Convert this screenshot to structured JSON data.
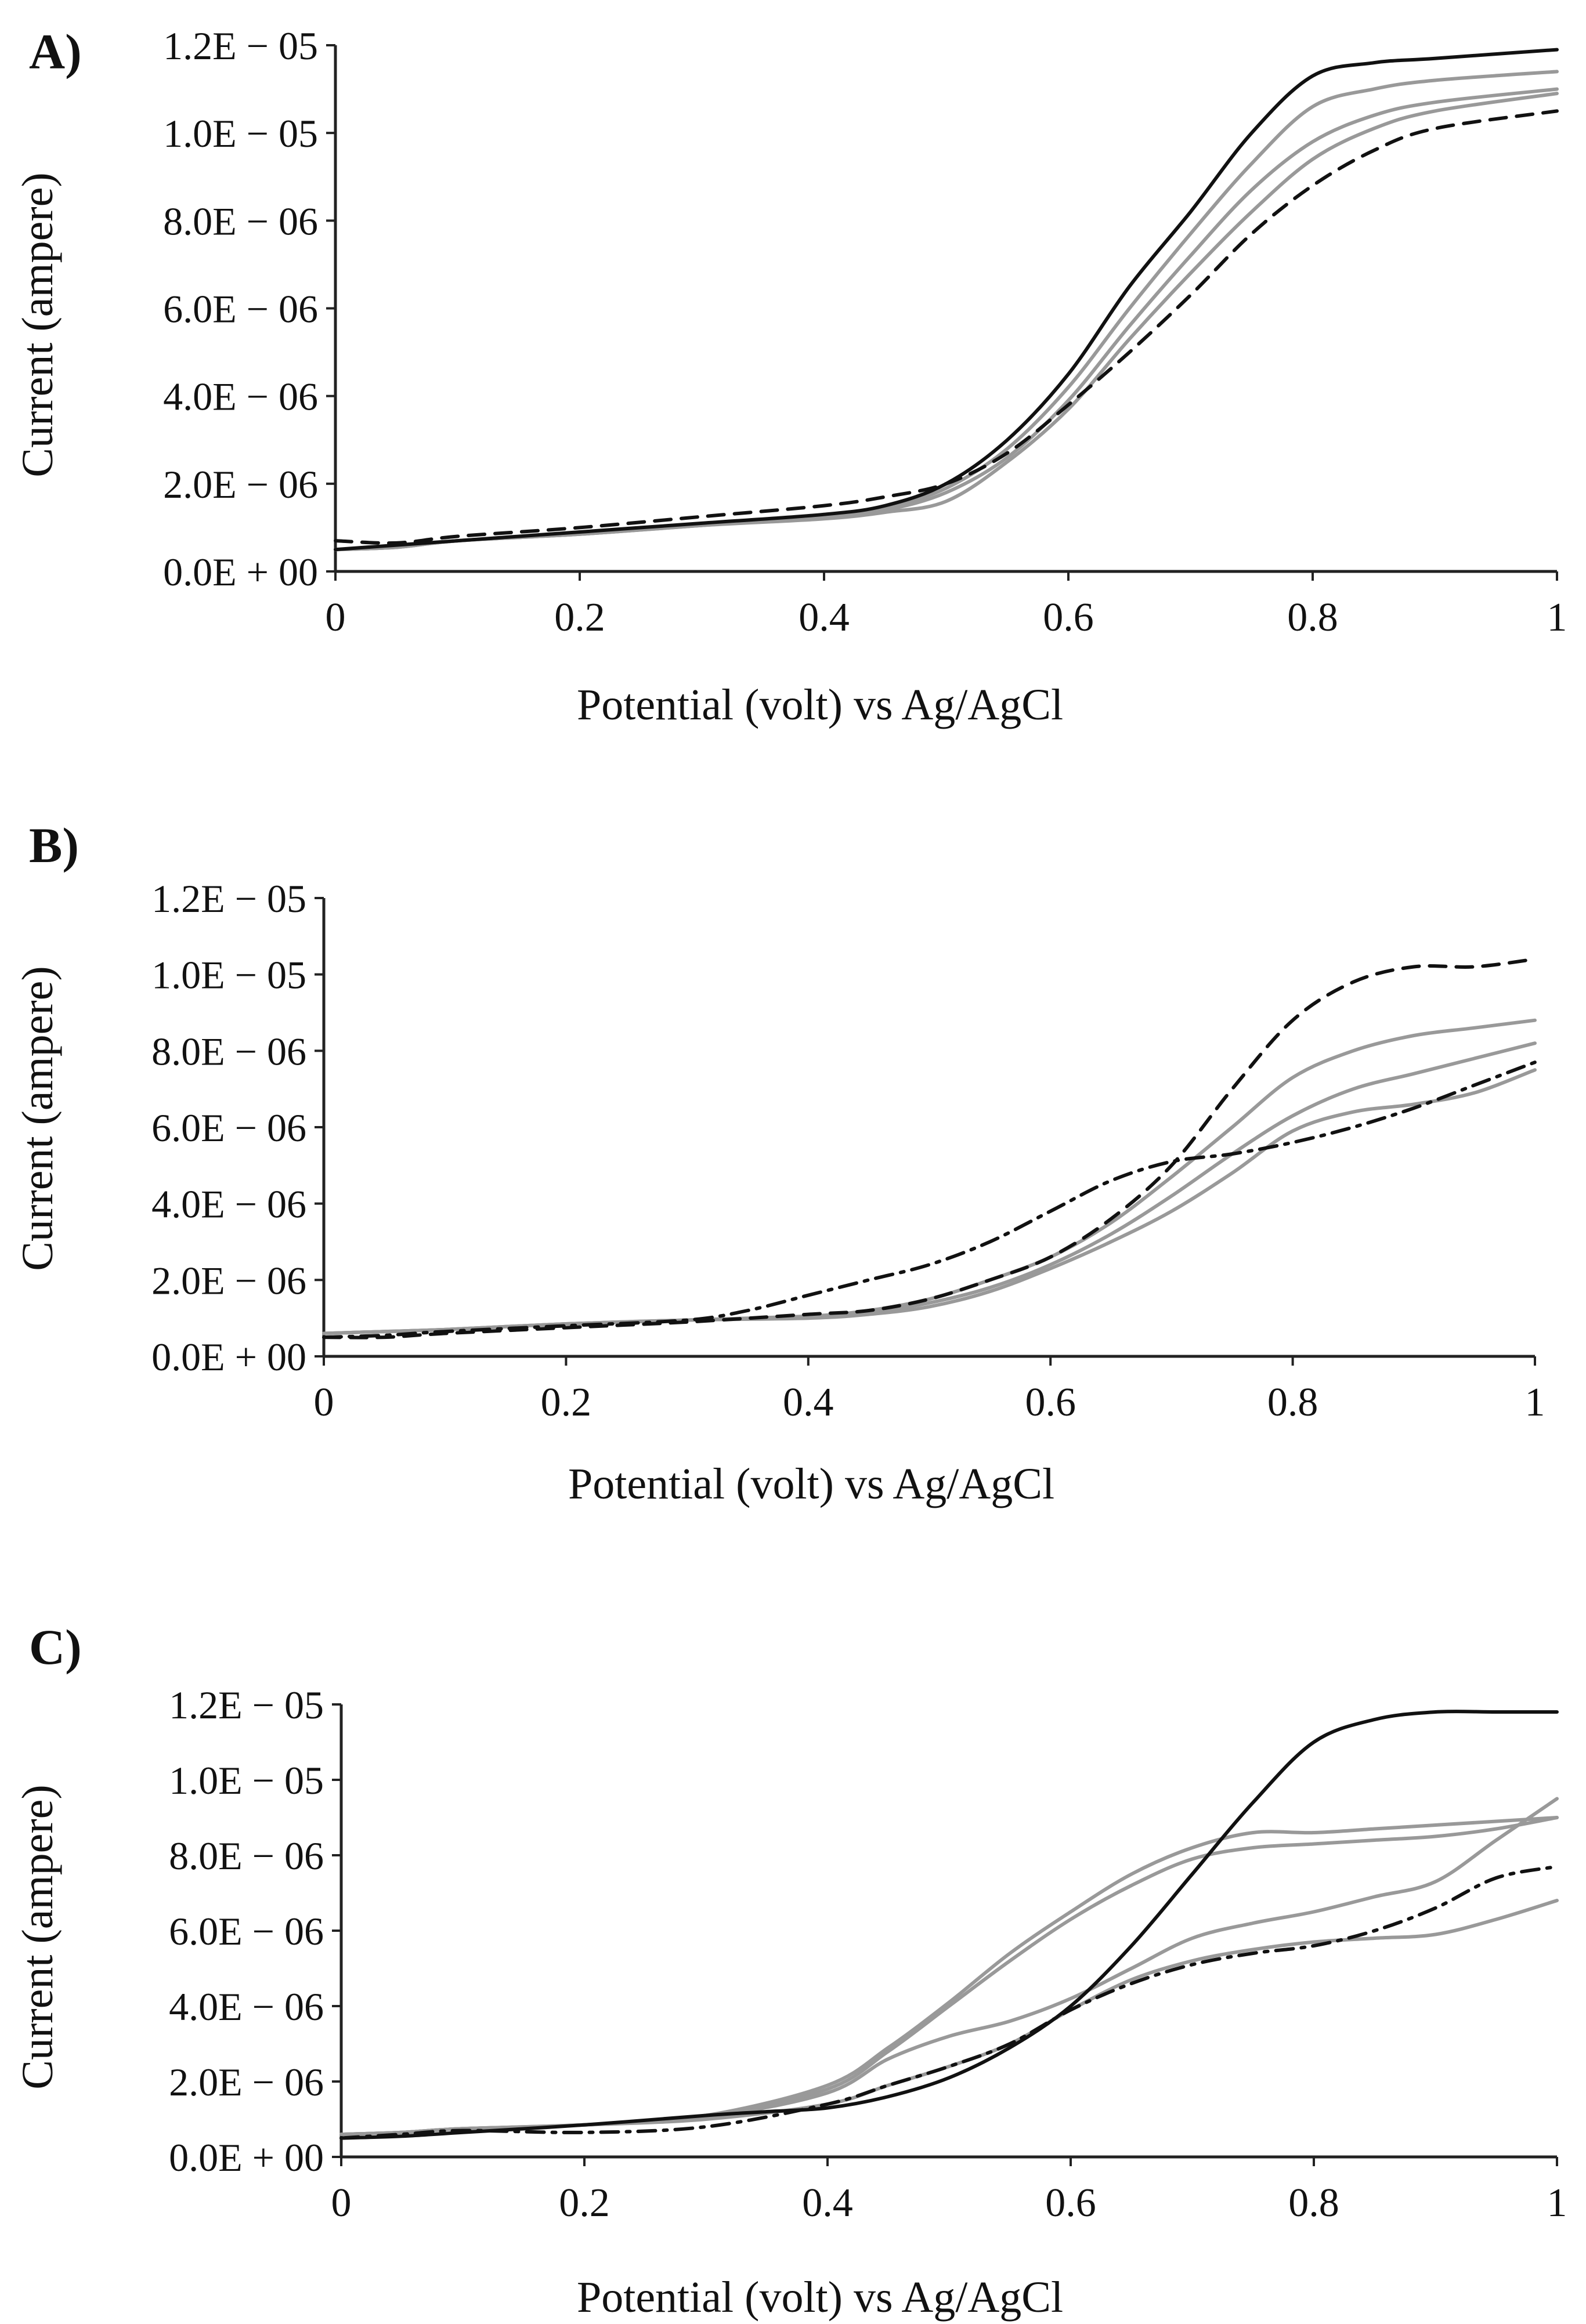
{
  "chart_data": [
    {
      "panel_label": "A)",
      "type": "line",
      "xlabel": "Potential (volt) vs Ag/AgCl",
      "ylabel": "Current (ampere)",
      "xlim": [
        0,
        1
      ],
      "ylim": [
        0,
        1.2e-05
      ],
      "xticks": [
        "0",
        "0.2",
        "0.4",
        "0.6",
        "0.8",
        "1"
      ],
      "yticks": [
        "0.0E + 00",
        "2.0E − 06",
        "4.0E − 06",
        "6.0E − 06",
        "8.0E − 06",
        "1.0E − 05",
        "1.2E − 05"
      ],
      "series": [
        {
          "name": "black solid",
          "color": "#111111",
          "dash": "solid",
          "x": [
            0,
            0.05,
            0.1,
            0.2,
            0.3,
            0.4,
            0.45,
            0.5,
            0.55,
            0.6,
            0.65,
            0.7,
            0.75,
            0.8,
            0.85,
            0.9,
            1.0
          ],
          "y": [
            5e-07,
            6e-07,
            7e-07,
            9e-07,
            1.1e-06,
            1.3e-06,
            1.5e-06,
            2e-06,
            3e-06,
            4.5e-06,
            6.5e-06,
            8.2e-06,
            1e-05,
            1.13e-05,
            1.16e-05,
            1.17e-05,
            1.19e-05
          ]
        },
        {
          "name": "gray 1",
          "color": "#999999",
          "dash": "solid",
          "x": [
            0,
            0.05,
            0.1,
            0.2,
            0.3,
            0.4,
            0.45,
            0.5,
            0.55,
            0.6,
            0.65,
            0.7,
            0.75,
            0.8,
            0.85,
            0.9,
            1.0
          ],
          "y": [
            5e-07,
            5.5e-07,
            7e-07,
            8.5e-07,
            1.05e-06,
            1.25e-06,
            1.45e-06,
            1.9e-06,
            2.8e-06,
            4.2e-06,
            6e-06,
            7.7e-06,
            9.3e-06,
            1.06e-05,
            1.1e-05,
            1.12e-05,
            1.14e-05
          ]
        },
        {
          "name": "gray 2",
          "color": "#999999",
          "dash": "solid",
          "x": [
            0,
            0.05,
            0.1,
            0.2,
            0.3,
            0.4,
            0.45,
            0.5,
            0.55,
            0.6,
            0.65,
            0.7,
            0.75,
            0.8,
            0.85,
            0.9,
            1.0
          ],
          "y": [
            5e-07,
            5.5e-07,
            7e-07,
            8.5e-07,
            1.05e-06,
            1.25e-06,
            1.4e-06,
            1.8e-06,
            2.6e-06,
            3.9e-06,
            5.6e-06,
            7.2e-06,
            8.7e-06,
            9.8e-06,
            1.04e-05,
            1.07e-05,
            1.1e-05
          ]
        },
        {
          "name": "gray 3",
          "color": "#999999",
          "dash": "solid",
          "x": [
            0,
            0.05,
            0.1,
            0.2,
            0.3,
            0.4,
            0.45,
            0.5,
            0.55,
            0.6,
            0.65,
            0.7,
            0.75,
            0.8,
            0.85,
            0.9,
            1.0
          ],
          "y": [
            5e-07,
            5.5e-07,
            7e-07,
            8.5e-07,
            1.05e-06,
            1.2e-06,
            1.35e-06,
            1.6e-06,
            2.5e-06,
            3.7e-06,
            5.3e-06,
            6.8e-06,
            8.2e-06,
            9.4e-06,
            1.01e-05,
            1.05e-05,
            1.09e-05
          ]
        },
        {
          "name": "black dashed",
          "color": "#111111",
          "dash": "dashed",
          "x": [
            0,
            0.05,
            0.1,
            0.2,
            0.3,
            0.4,
            0.45,
            0.5,
            0.55,
            0.6,
            0.65,
            0.7,
            0.75,
            0.8,
            0.85,
            0.9,
            1.0
          ],
          "y": [
            7e-07,
            6.5e-07,
            8e-07,
            1e-06,
            1.25e-06,
            1.5e-06,
            1.7e-06,
            2e-06,
            2.7e-06,
            3.8e-06,
            5e-06,
            6.3e-06,
            7.7e-06,
            8.8e-06,
            9.6e-06,
            1.01e-05,
            1.05e-05
          ]
        }
      ]
    },
    {
      "panel_label": "B)",
      "type": "line",
      "xlabel": "Potential (volt) vs Ag/AgCl",
      "ylabel": "Current (ampere)",
      "xlim": [
        0,
        1
      ],
      "ylim": [
        0,
        1.2e-05
      ],
      "xticks": [
        "0",
        "0.2",
        "0.4",
        "0.6",
        "0.8",
        "1"
      ],
      "yticks": [
        "0.0E + 00",
        "2.0E − 06",
        "4.0E − 06",
        "6.0E − 06",
        "8.0E − 06",
        "1.0E − 05",
        "1.2E − 05"
      ],
      "series": [
        {
          "name": "black dashed",
          "color": "#111111",
          "dash": "dashed",
          "x": [
            0,
            0.05,
            0.1,
            0.2,
            0.3,
            0.4,
            0.45,
            0.5,
            0.55,
            0.6,
            0.65,
            0.7,
            0.75,
            0.8,
            0.85,
            0.9,
            0.95,
            1.0
          ],
          "y": [
            5e-07,
            5e-07,
            6e-07,
            7.5e-07,
            9e-07,
            1.1e-06,
            1.2e-06,
            1.5e-06,
            2e-06,
            2.6e-06,
            3.6e-06,
            5e-06,
            7e-06,
            8.8e-06,
            9.8e-06,
            1.02e-05,
            1.02e-05,
            1.04e-05
          ]
        },
        {
          "name": "black dash-dot",
          "color": "#111111",
          "dash": "dashdot",
          "x": [
            0,
            0.05,
            0.1,
            0.2,
            0.3,
            0.35,
            0.4,
            0.45,
            0.5,
            0.55,
            0.6,
            0.65,
            0.7,
            0.75,
            0.8,
            0.85,
            0.9,
            0.95,
            1.0
          ],
          "y": [
            5e-07,
            5.5e-07,
            6.5e-07,
            8e-07,
            9.5e-07,
            1.2e-06,
            1.6e-06,
            2e-06,
            2.4e-06,
            3e-06,
            3.8e-06,
            4.6e-06,
            5.1e-06,
            5.3e-06,
            5.6e-06,
            6e-06,
            6.5e-06,
            7.1e-06,
            7.7e-06
          ]
        },
        {
          "name": "gray 1",
          "color": "#999999",
          "dash": "solid",
          "x": [
            0,
            0.05,
            0.1,
            0.2,
            0.3,
            0.4,
            0.45,
            0.5,
            0.55,
            0.6,
            0.65,
            0.7,
            0.75,
            0.8,
            0.85,
            0.9,
            0.95,
            1.0
          ],
          "y": [
            6e-07,
            6.5e-07,
            7e-07,
            8.5e-07,
            9.5e-07,
            1.05e-06,
            1.2e-06,
            1.5e-06,
            2e-06,
            2.6e-06,
            3.5e-06,
            4.7e-06,
            6e-06,
            7.3e-06,
            8e-06,
            8.4e-06,
            8.6e-06,
            8.8e-06
          ]
        },
        {
          "name": "gray 2",
          "color": "#999999",
          "dash": "solid",
          "x": [
            0,
            0.05,
            0.1,
            0.2,
            0.3,
            0.4,
            0.45,
            0.5,
            0.55,
            0.6,
            0.65,
            0.7,
            0.75,
            0.8,
            0.85,
            0.9,
            0.95,
            1.0
          ],
          "y": [
            6e-07,
            6.5e-07,
            7e-07,
            8.5e-07,
            9.5e-07,
            1.05e-06,
            1.15e-06,
            1.4e-06,
            1.8e-06,
            2.4e-06,
            3.2e-06,
            4.2e-06,
            5.3e-06,
            6.3e-06,
            7e-06,
            7.4e-06,
            7.8e-06,
            8.2e-06
          ]
        },
        {
          "name": "gray 3",
          "color": "#999999",
          "dash": "solid",
          "x": [
            0,
            0.05,
            0.1,
            0.2,
            0.3,
            0.4,
            0.45,
            0.5,
            0.55,
            0.6,
            0.65,
            0.7,
            0.75,
            0.8,
            0.85,
            0.9,
            0.95,
            1.0
          ],
          "y": [
            6e-07,
            6.5e-07,
            7e-07,
            8.5e-07,
            9.5e-07,
            1e-06,
            1.1e-06,
            1.3e-06,
            1.7e-06,
            2.3e-06,
            3e-06,
            3.8e-06,
            4.8e-06,
            5.9e-06,
            6.4e-06,
            6.6e-06,
            6.9e-06,
            7.5e-06
          ]
        }
      ]
    },
    {
      "panel_label": "C)",
      "type": "line",
      "xlabel": "Potential (volt) vs Ag/AgCl",
      "ylabel": "Current (ampere)",
      "xlim": [
        0,
        1
      ],
      "ylim": [
        0,
        1.2e-05
      ],
      "xticks": [
        "0",
        "0.2",
        "0.4",
        "0.6",
        "0.8",
        "1"
      ],
      "yticks": [
        "0.0E + 00",
        "2.0E − 06",
        "4.0E − 06",
        "6.0E − 06",
        "8.0E − 06",
        "1.0E − 05",
        "1.2E − 05"
      ],
      "series": [
        {
          "name": "black solid",
          "color": "#111111",
          "dash": "solid",
          "x": [
            0,
            0.05,
            0.1,
            0.2,
            0.3,
            0.35,
            0.4,
            0.45,
            0.5,
            0.55,
            0.6,
            0.65,
            0.7,
            0.75,
            0.8,
            0.85,
            0.9,
            0.95,
            1.0
          ],
          "y": [
            5e-07,
            5.5e-07,
            6.5e-07,
            8.5e-07,
            1.1e-06,
            1.2e-06,
            1.3e-06,
            1.6e-06,
            2.1e-06,
            2.9e-06,
            4e-06,
            5.6e-06,
            7.5e-06,
            9.4e-06,
            1.1e-05,
            1.16e-05,
            1.18e-05,
            1.18e-05,
            1.18e-05
          ]
        },
        {
          "name": "gray 1",
          "color": "#999999",
          "dash": "solid",
          "x": [
            0,
            0.05,
            0.1,
            0.2,
            0.3,
            0.4,
            0.45,
            0.5,
            0.55,
            0.6,
            0.65,
            0.7,
            0.75,
            0.8,
            0.85,
            0.9,
            0.95,
            1.0
          ],
          "y": [
            6e-07,
            6.5e-07,
            7.5e-07,
            8.5e-07,
            1.1e-06,
            1.9e-06,
            2.9e-06,
            4.1e-06,
            5.4e-06,
            6.5e-06,
            7.5e-06,
            8.2e-06,
            8.6e-06,
            8.6e-06,
            8.7e-06,
            8.8e-06,
            8.9e-06,
            9e-06
          ]
        },
        {
          "name": "gray 2",
          "color": "#999999",
          "dash": "solid",
          "x": [
            0,
            0.05,
            0.1,
            0.2,
            0.3,
            0.4,
            0.45,
            0.5,
            0.55,
            0.6,
            0.65,
            0.7,
            0.75,
            0.8,
            0.85,
            0.9,
            0.95,
            1.0
          ],
          "y": [
            6e-07,
            6.5e-07,
            7.5e-07,
            8.5e-07,
            1.1e-06,
            1.8e-06,
            2.8e-06,
            4e-06,
            5.2e-06,
            6.3e-06,
            7.2e-06,
            7.9e-06,
            8.2e-06,
            8.3e-06,
            8.4e-06,
            8.5e-06,
            8.7e-06,
            9e-06
          ]
        },
        {
          "name": "gray 3",
          "color": "#999999",
          "dash": "solid",
          "x": [
            0,
            0.05,
            0.1,
            0.2,
            0.3,
            0.4,
            0.45,
            0.5,
            0.55,
            0.6,
            0.65,
            0.7,
            0.75,
            0.8,
            0.85,
            0.9,
            0.95,
            1.0
          ],
          "y": [
            6e-07,
            6.5e-07,
            7.5e-07,
            8.5e-07,
            1.05e-06,
            1.7e-06,
            2.6e-06,
            3.2e-06,
            3.6e-06,
            4.2e-06,
            5e-06,
            5.8e-06,
            6.2e-06,
            6.5e-06,
            6.9e-06,
            7.3e-06,
            8.4e-06,
            9.5e-06
          ]
        },
        {
          "name": "gray 4",
          "color": "#999999",
          "dash": "solid",
          "x": [
            0,
            0.05,
            0.1,
            0.2,
            0.3,
            0.4,
            0.45,
            0.5,
            0.55,
            0.6,
            0.65,
            0.7,
            0.75,
            0.8,
            0.85,
            0.9,
            0.95,
            1.0
          ],
          "y": [
            6e-07,
            6.5e-07,
            7.5e-07,
            8.5e-07,
            1e-06,
            1.4e-06,
            1.9e-06,
            2.4e-06,
            3e-06,
            3.9e-06,
            4.7e-06,
            5.2e-06,
            5.5e-06,
            5.7e-06,
            5.8e-06,
            5.9e-06,
            6.3e-06,
            6.8e-06
          ]
        },
        {
          "name": "black dash-dot",
          "color": "#111111",
          "dash": "dashdot",
          "x": [
            0,
            0.05,
            0.1,
            0.2,
            0.3,
            0.4,
            0.45,
            0.5,
            0.55,
            0.6,
            0.65,
            0.7,
            0.75,
            0.8,
            0.85,
            0.9,
            0.95,
            1.0
          ],
          "y": [
            5e-07,
            6e-07,
            7e-07,
            6.5e-07,
            8e-07,
            1.4e-06,
            1.9e-06,
            2.4e-06,
            3e-06,
            3.9e-06,
            4.6e-06,
            5.1e-06,
            5.4e-06,
            5.6e-06,
            6e-06,
            6.6e-06,
            7.4e-06,
            7.7e-06
          ]
        }
      ]
    }
  ]
}
